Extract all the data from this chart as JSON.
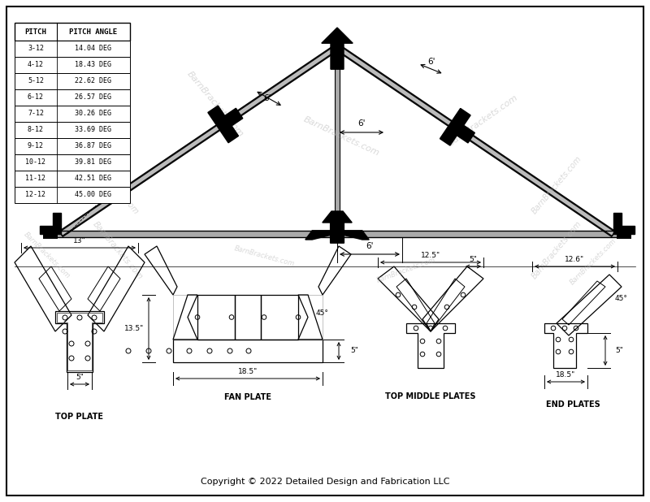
{
  "bg_color": "#ffffff",
  "line_color": "#000000",
  "copyright": "Copyright © 2022 Detailed Design and Fabrication LLC",
  "table_headers": [
    "PITCH",
    "PITCH ANGLE"
  ],
  "table_rows": [
    [
      "3-12",
      "14.04 DEG"
    ],
    [
      "4-12",
      "18.43 DEG"
    ],
    [
      "5-12",
      "22.62 DEG"
    ],
    [
      "6-12",
      "26.57 DEG"
    ],
    [
      "7-12",
      "30.26 DEG"
    ],
    [
      "8-12",
      "33.69 DEG"
    ],
    [
      "9-12",
      "36.87 DEG"
    ],
    [
      "10-12",
      "39.81 DEG"
    ],
    [
      "11-12",
      "42.51 DEG"
    ],
    [
      "12-12",
      "45.00 DEG"
    ]
  ],
  "wm_color": "#bbbbbb",
  "wm_alpha": 0.55
}
